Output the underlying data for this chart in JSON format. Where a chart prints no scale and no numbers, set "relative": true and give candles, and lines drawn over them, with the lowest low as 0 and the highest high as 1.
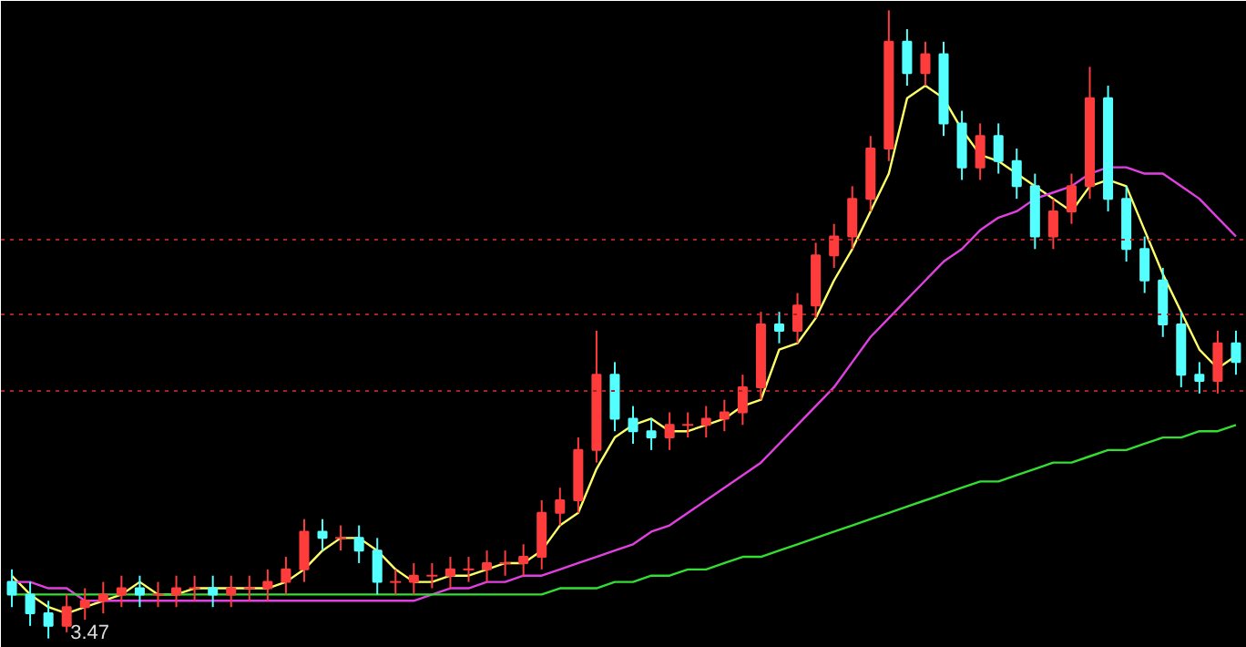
{
  "chart_data": {
    "type": "candlestick",
    "relative": true,
    "categories": [
      null,
      null,
      null,
      null,
      null,
      null,
      null,
      null,
      null,
      null,
      null,
      null,
      null,
      null,
      null,
      null,
      null,
      null,
      null,
      null,
      null,
      null,
      null,
      null,
      null,
      null,
      null,
      null,
      null,
      null,
      null,
      null,
      null,
      null,
      null,
      null,
      null,
      null,
      null,
      null,
      null,
      null,
      null,
      null,
      null,
      null,
      null,
      null,
      null,
      null,
      null,
      null,
      null,
      null,
      null,
      null,
      null,
      null,
      null,
      null,
      null,
      null,
      null,
      null,
      null,
      null,
      null,
      null
    ],
    "ohlc": [
      [
        0.09,
        0.11,
        0.05,
        0.07
      ],
      [
        0.07,
        0.09,
        0.02,
        0.04
      ],
      [
        0.04,
        0.06,
        0.0,
        0.02
      ],
      [
        0.02,
        0.07,
        0.01,
        0.05
      ],
      [
        0.05,
        0.08,
        0.03,
        0.06
      ],
      [
        0.06,
        0.09,
        0.04,
        0.07
      ],
      [
        0.07,
        0.1,
        0.05,
        0.08
      ],
      [
        0.08,
        0.1,
        0.05,
        0.07
      ],
      [
        0.07,
        0.09,
        0.05,
        0.07
      ],
      [
        0.07,
        0.1,
        0.05,
        0.08
      ],
      [
        0.08,
        0.1,
        0.06,
        0.08
      ],
      [
        0.08,
        0.1,
        0.05,
        0.07
      ],
      [
        0.07,
        0.1,
        0.05,
        0.08
      ],
      [
        0.08,
        0.1,
        0.06,
        0.08
      ],
      [
        0.08,
        0.11,
        0.06,
        0.09
      ],
      [
        0.09,
        0.13,
        0.07,
        0.11
      ],
      [
        0.11,
        0.19,
        0.09,
        0.17
      ],
      [
        0.17,
        0.19,
        0.14,
        0.16
      ],
      [
        0.16,
        0.18,
        0.14,
        0.16
      ],
      [
        0.16,
        0.18,
        0.12,
        0.14
      ],
      [
        0.14,
        0.16,
        0.07,
        0.09
      ],
      [
        0.09,
        0.11,
        0.07,
        0.09
      ],
      [
        0.09,
        0.12,
        0.07,
        0.1
      ],
      [
        0.1,
        0.12,
        0.08,
        0.1
      ],
      [
        0.1,
        0.13,
        0.08,
        0.11
      ],
      [
        0.11,
        0.13,
        0.09,
        0.11
      ],
      [
        0.11,
        0.14,
        0.09,
        0.12
      ],
      [
        0.12,
        0.14,
        0.1,
        0.12
      ],
      [
        0.12,
        0.15,
        0.1,
        0.13
      ],
      [
        0.13,
        0.22,
        0.11,
        0.2
      ],
      [
        0.2,
        0.24,
        0.18,
        0.22
      ],
      [
        0.22,
        0.32,
        0.2,
        0.3
      ],
      [
        0.3,
        0.49,
        0.28,
        0.42
      ],
      [
        0.42,
        0.44,
        0.33,
        0.35
      ],
      [
        0.35,
        0.37,
        0.31,
        0.33
      ],
      [
        0.33,
        0.35,
        0.3,
        0.32
      ],
      [
        0.32,
        0.36,
        0.3,
        0.34
      ],
      [
        0.34,
        0.36,
        0.32,
        0.34
      ],
      [
        0.34,
        0.37,
        0.32,
        0.35
      ],
      [
        0.35,
        0.38,
        0.33,
        0.36
      ],
      [
        0.36,
        0.42,
        0.34,
        0.4
      ],
      [
        0.4,
        0.52,
        0.38,
        0.5
      ],
      [
        0.5,
        0.52,
        0.47,
        0.49
      ],
      [
        0.49,
        0.55,
        0.47,
        0.53
      ],
      [
        0.53,
        0.63,
        0.51,
        0.61
      ],
      [
        0.61,
        0.66,
        0.59,
        0.64
      ],
      [
        0.64,
        0.72,
        0.62,
        0.7
      ],
      [
        0.7,
        0.8,
        0.68,
        0.78
      ],
      [
        0.78,
        1.0,
        0.76,
        0.95
      ],
      [
        0.95,
        0.97,
        0.88,
        0.9
      ],
      [
        0.9,
        0.95,
        0.88,
        0.93
      ],
      [
        0.93,
        0.95,
        0.8,
        0.82
      ],
      [
        0.82,
        0.84,
        0.73,
        0.75
      ],
      [
        0.75,
        0.82,
        0.73,
        0.8
      ],
      [
        0.8,
        0.82,
        0.74,
        0.76
      ],
      [
        0.76,
        0.78,
        0.7,
        0.72
      ],
      [
        0.72,
        0.74,
        0.62,
        0.64
      ],
      [
        0.64,
        0.7,
        0.62,
        0.68
      ],
      [
        0.68,
        0.74,
        0.66,
        0.72
      ],
      [
        0.72,
        0.91,
        0.7,
        0.86
      ],
      [
        0.86,
        0.88,
        0.68,
        0.7
      ],
      [
        0.7,
        0.72,
        0.6,
        0.62
      ],
      [
        0.62,
        0.64,
        0.55,
        0.57
      ],
      [
        0.57,
        0.59,
        0.48,
        0.5
      ],
      [
        0.5,
        0.52,
        0.4,
        0.42
      ],
      [
        0.42,
        0.44,
        0.39,
        0.41
      ],
      [
        0.41,
        0.49,
        0.39,
        0.47
      ],
      [
        0.47,
        0.49,
        0.42,
        0.44
      ]
    ],
    "colors": [
      "#54ffff",
      "#54ffff",
      "#54ffff",
      "#ff3c3c",
      "#ff3c3c",
      "#ff3c3c",
      "#ff3c3c",
      "#54ffff",
      "#ff3c3c",
      "#ff3c3c",
      "#ff3c3c",
      "#54ffff",
      "#ff3c3c",
      "#ff3c3c",
      "#ff3c3c",
      "#ff3c3c",
      "#ff3c3c",
      "#54ffff",
      "#ff3c3c",
      "#54ffff",
      "#54ffff",
      "#ff3c3c",
      "#ff3c3c",
      "#ff3c3c",
      "#ff3c3c",
      "#ff3c3c",
      "#ff3c3c",
      "#ff3c3c",
      "#ff3c3c",
      "#ff3c3c",
      "#ff3c3c",
      "#ff3c3c",
      "#ff3c3c",
      "#54ffff",
      "#54ffff",
      "#54ffff",
      "#ff3c3c",
      "#ff3c3c",
      "#ff3c3c",
      "#ff3c3c",
      "#ff3c3c",
      "#ff3c3c",
      "#54ffff",
      "#ff3c3c",
      "#ff3c3c",
      "#ff3c3c",
      "#ff3c3c",
      "#ff3c3c",
      "#ff3c3c",
      "#54ffff",
      "#ff3c3c",
      "#54ffff",
      "#54ffff",
      "#ff3c3c",
      "#54ffff",
      "#54ffff",
      "#54ffff",
      "#ff3c3c",
      "#ff3c3c",
      "#ff3c3c",
      "#54ffff",
      "#54ffff",
      "#54ffff",
      "#54ffff",
      "#54ffff",
      "#54ffff",
      "#ff3c3c",
      "#54ffff"
    ],
    "series": [
      {
        "type": "line",
        "color": "#ffff66",
        "values": [
          0.1,
          0.07,
          0.05,
          0.04,
          0.05,
          0.06,
          0.07,
          0.09,
          0.07,
          0.07,
          0.08,
          0.08,
          0.08,
          0.08,
          0.08,
          0.09,
          0.11,
          0.14,
          0.16,
          0.16,
          0.14,
          0.11,
          0.09,
          0.09,
          0.1,
          0.1,
          0.11,
          0.12,
          0.12,
          0.14,
          0.18,
          0.2,
          0.27,
          0.32,
          0.34,
          0.35,
          0.33,
          0.33,
          0.34,
          0.35,
          0.37,
          0.38,
          0.46,
          0.47,
          0.51,
          0.57,
          0.62,
          0.68,
          0.74,
          0.86,
          0.88,
          0.86,
          0.81,
          0.77,
          0.76,
          0.74,
          0.72,
          0.7,
          0.68,
          0.72,
          0.73,
          0.72,
          0.65,
          0.58,
          0.52,
          0.46,
          0.43,
          0.45
        ]
      },
      {
        "type": "line",
        "color": "#e040e0",
        "values": [
          0.09,
          0.09,
          0.08,
          0.08,
          0.06,
          0.06,
          0.06,
          0.06,
          0.06,
          0.06,
          0.06,
          0.06,
          0.06,
          0.06,
          0.06,
          0.06,
          0.06,
          0.06,
          0.06,
          0.06,
          0.06,
          0.06,
          0.06,
          0.07,
          0.08,
          0.08,
          0.09,
          0.09,
          0.1,
          0.1,
          0.11,
          0.12,
          0.13,
          0.14,
          0.15,
          0.17,
          0.18,
          0.2,
          0.22,
          0.24,
          0.26,
          0.28,
          0.31,
          0.34,
          0.37,
          0.4,
          0.44,
          0.48,
          0.51,
          0.54,
          0.57,
          0.6,
          0.62,
          0.65,
          0.67,
          0.68,
          0.7,
          0.71,
          0.72,
          0.74,
          0.75,
          0.75,
          0.74,
          0.74,
          0.72,
          0.7,
          0.67,
          0.64
        ]
      },
      {
        "type": "line",
        "color": "#33dd33",
        "values": [
          0.07,
          0.07,
          0.07,
          0.07,
          0.07,
          0.07,
          0.07,
          0.07,
          0.07,
          0.07,
          0.07,
          0.07,
          0.07,
          0.07,
          0.07,
          0.07,
          0.07,
          0.07,
          0.07,
          0.07,
          0.07,
          0.07,
          0.07,
          0.07,
          0.07,
          0.07,
          0.07,
          0.07,
          0.07,
          0.07,
          0.08,
          0.08,
          0.08,
          0.09,
          0.09,
          0.1,
          0.1,
          0.11,
          0.11,
          0.12,
          0.13,
          0.13,
          0.14,
          0.15,
          0.16,
          0.17,
          0.18,
          0.19,
          0.2,
          0.21,
          0.22,
          0.23,
          0.24,
          0.25,
          0.25,
          0.26,
          0.27,
          0.28,
          0.28,
          0.29,
          0.3,
          0.3,
          0.31,
          0.32,
          0.32,
          0.33,
          0.33,
          0.34
        ]
      }
    ],
    "ref_lines": [
      {
        "axis": "y",
        "value": 0.635,
        "color": "#b02020",
        "line_style": "dotted"
      },
      {
        "axis": "y",
        "value": 0.516,
        "color": "#b02020",
        "line_style": "dotted"
      },
      {
        "axis": "y",
        "value": 0.394,
        "color": "#b02020",
        "line_style": "dotted"
      }
    ],
    "annotations": [
      "3.47"
    ]
  }
}
